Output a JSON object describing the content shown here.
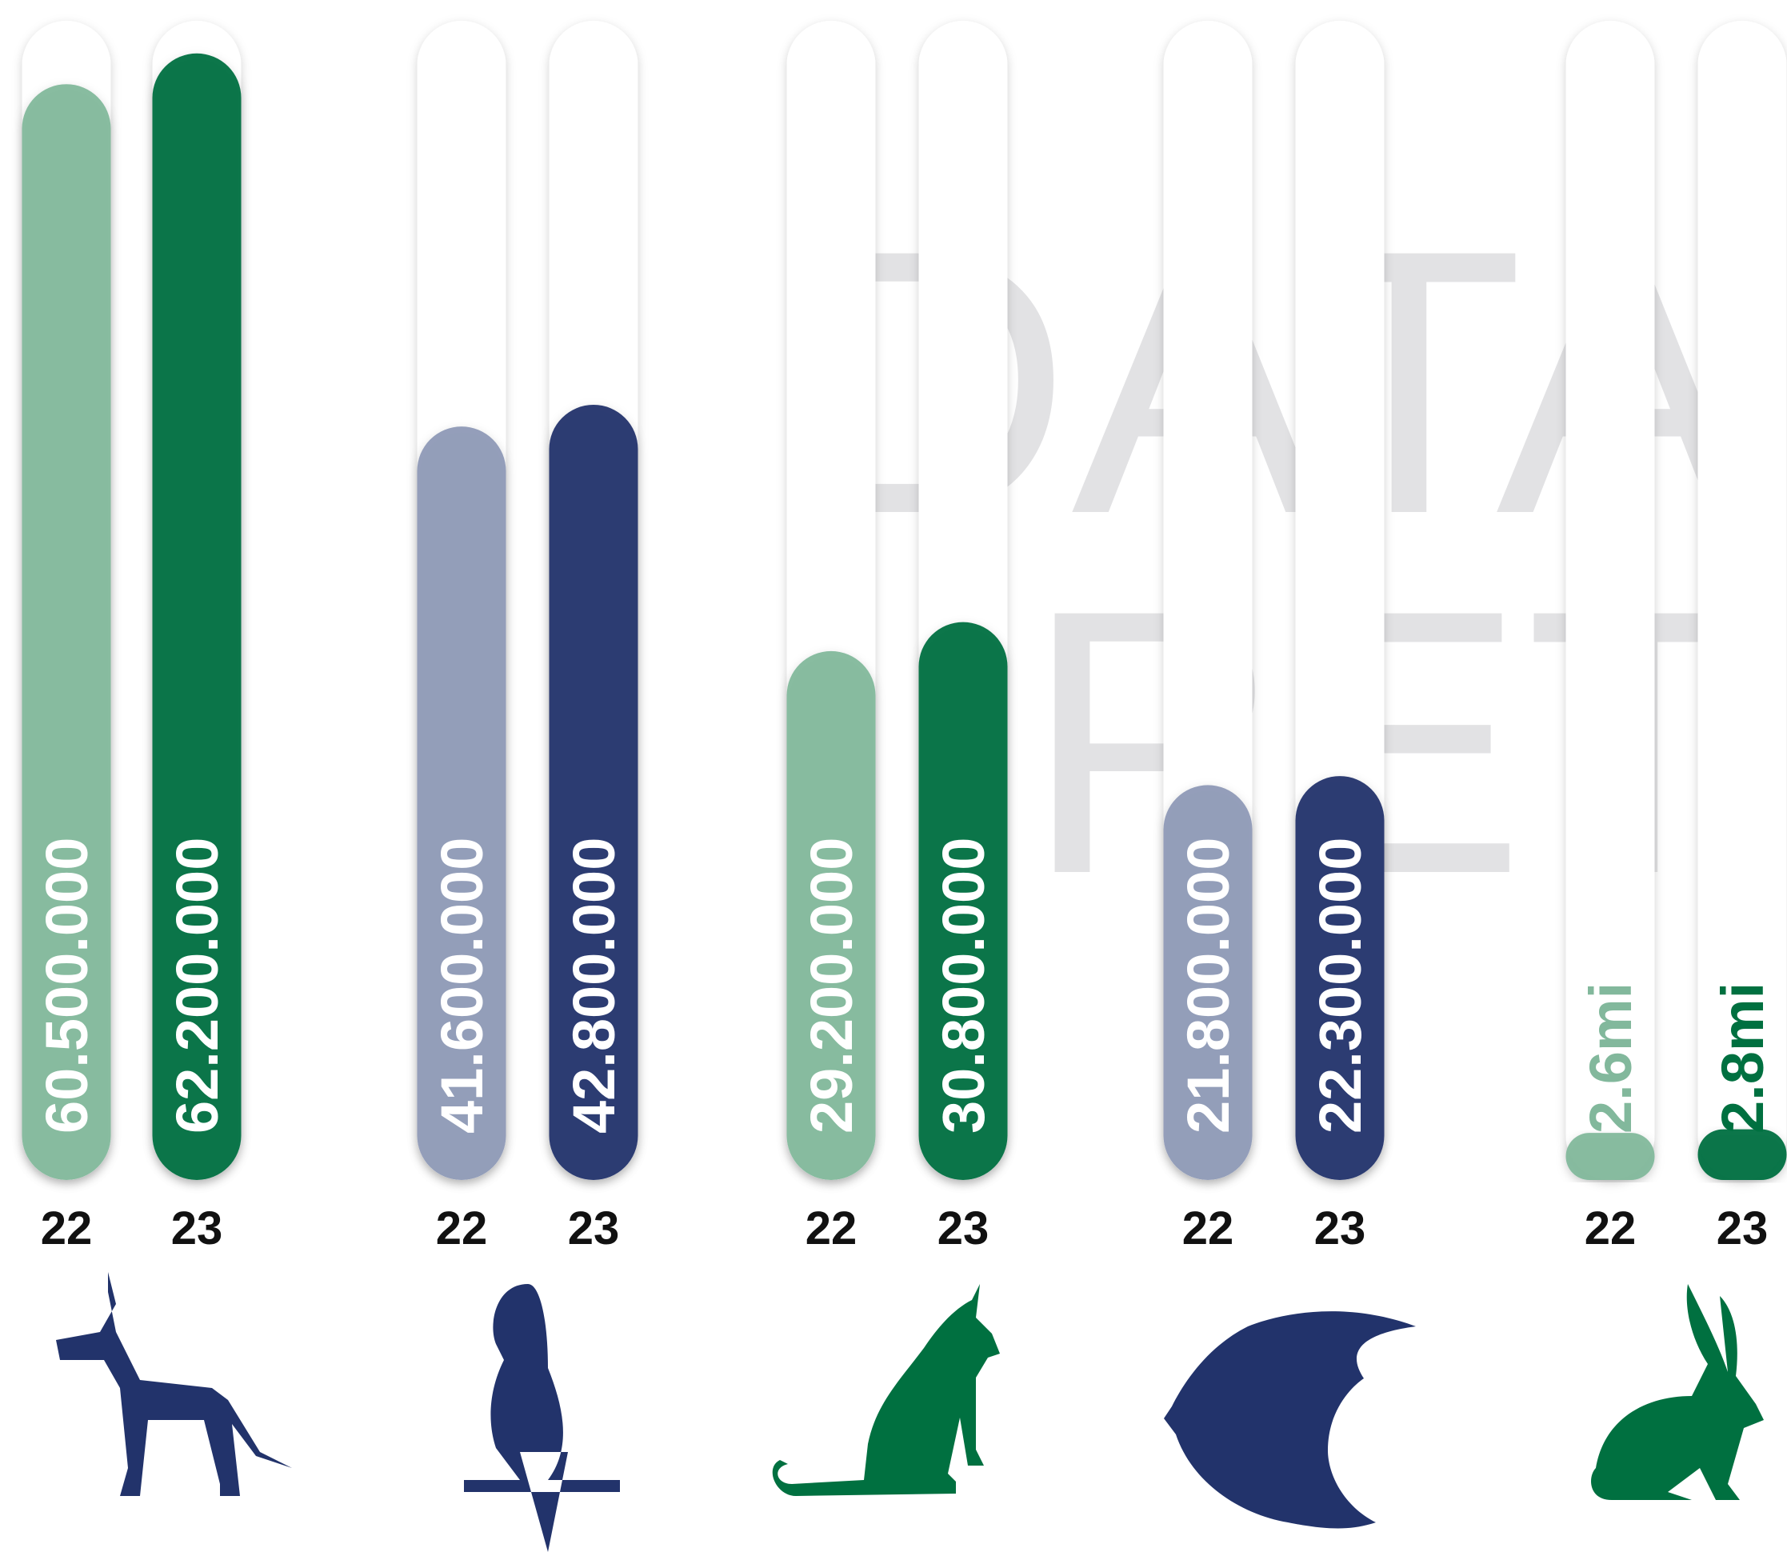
{
  "chart_data": {
    "type": "bar",
    "watermark": [
      "DATA",
      "PET"
    ],
    "ylim": [
      0,
      64000000
    ],
    "groups": [
      {
        "categories": [
          "22",
          "23"
        ],
        "values": [
          60500000,
          62200000
        ],
        "value_labels": [
          "60.500.000",
          "62.200.000"
        ],
        "colors": [
          "#82b89c",
          "#007040"
        ]
      },
      {
        "categories": [
          "22",
          "23"
        ],
        "values": [
          41600000,
          42800000
        ],
        "value_labels": [
          "41.600.000",
          "42.800.000"
        ],
        "colors": [
          "#8e9ab6",
          "#22336b"
        ]
      },
      {
        "categories": [
          "22",
          "23"
        ],
        "values": [
          29200000,
          30800000
        ],
        "value_labels": [
          "29.200.000",
          "30.800.000"
        ],
        "colors": [
          "#82b89c",
          "#007040"
        ]
      },
      {
        "categories": [
          "22",
          "23"
        ],
        "values": [
          21800000,
          22300000
        ],
        "value_labels": [
          "21.800.000",
          "22.300.000"
        ],
        "colors": [
          "#8e9ab6",
          "#22336b"
        ]
      },
      {
        "categories": [
          "22",
          "23"
        ],
        "values": [
          2600000,
          2800000
        ],
        "value_labels": [
          "2.6mi",
          "2.8mi"
        ],
        "colors": [
          "#82b89c",
          "#007040"
        ]
      }
    ]
  }
}
